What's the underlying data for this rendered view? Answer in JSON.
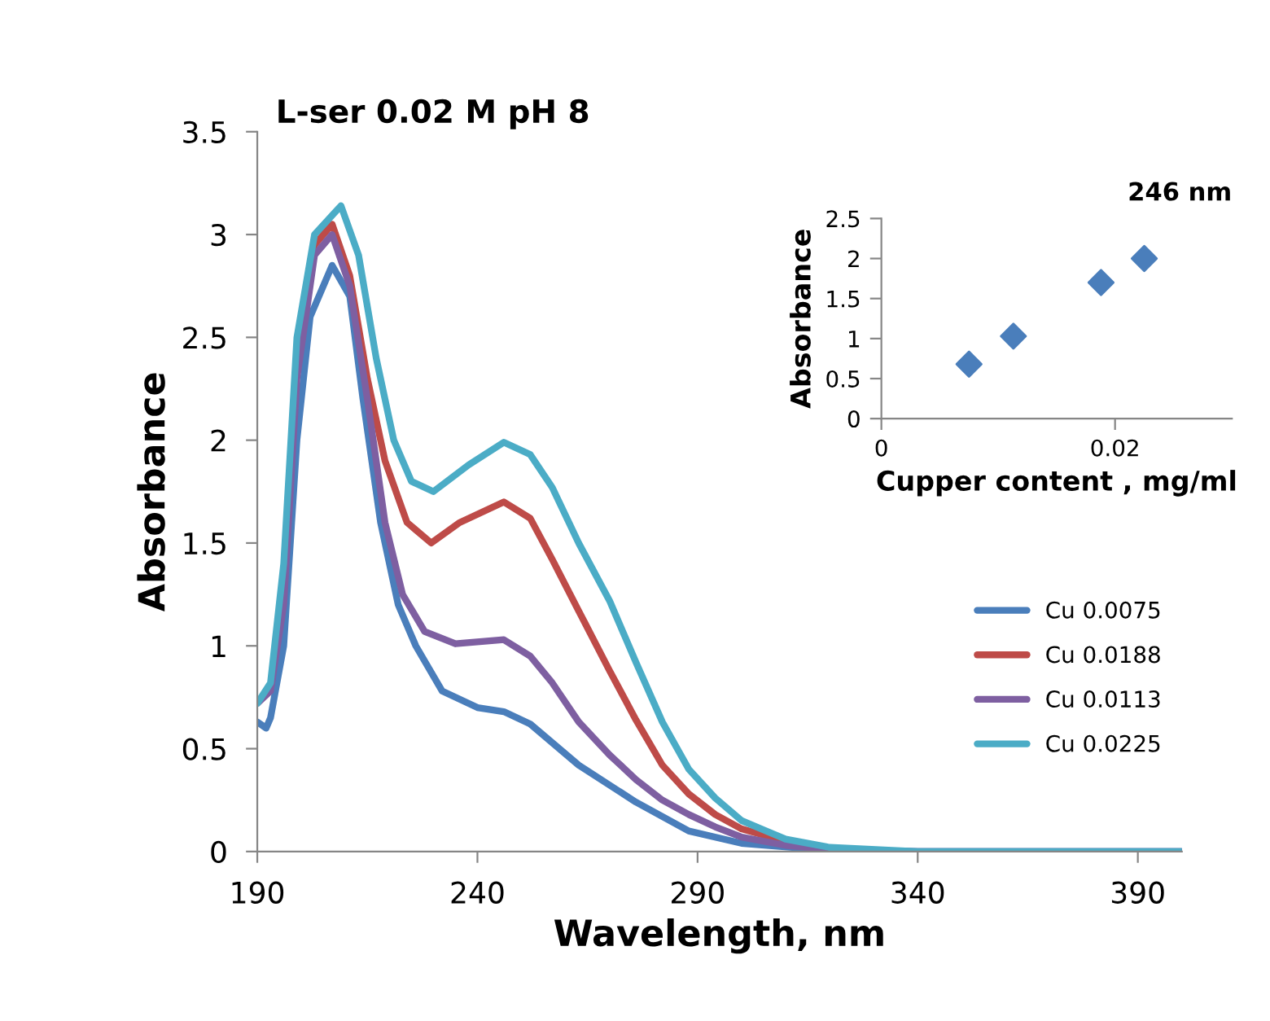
{
  "chart_data": [
    {
      "type": "line",
      "title": "L-ser 0.02 M pH 8",
      "xlabel": "Wavelength, nm",
      "ylabel": "Absorbance",
      "xlim": [
        190,
        400
      ],
      "ylim": [
        0,
        3.5
      ],
      "xticks": [
        190,
        240,
        290,
        340,
        390
      ],
      "yticks": [
        0,
        0.5,
        1,
        1.5,
        2,
        2.5,
        3,
        3.5
      ],
      "grid": false,
      "legend": "right",
      "marker": "none",
      "line_style": "solid",
      "series": [
        {
          "name": "Cu 0.0075",
          "color": "#4a7ebb",
          "x": [
            190,
            192,
            193,
            196,
            199,
            202,
            207,
            211,
            214,
            218,
            222,
            226,
            232,
            240,
            246,
            252,
            263,
            276,
            288,
            300,
            320,
            340,
            400
          ],
          "values": [
            0.63,
            0.6,
            0.65,
            1.0,
            2.0,
            2.6,
            2.85,
            2.7,
            2.2,
            1.6,
            1.2,
            1.0,
            0.78,
            0.7,
            0.68,
            0.62,
            0.42,
            0.24,
            0.1,
            0.04,
            0.005,
            0,
            0
          ]
        },
        {
          "name": "Cu 0.0188",
          "color": "#be4b48",
          "x": [
            199,
            203,
            207,
            211,
            215,
            219,
            224,
            229.5,
            236,
            246,
            252,
            257,
            263,
            270,
            276,
            282,
            288,
            294,
            300,
            310
          ],
          "values": [
            2.4,
            2.95,
            3.05,
            2.8,
            2.3,
            1.9,
            1.6,
            1.5,
            1.6,
            1.7,
            1.62,
            1.42,
            1.17,
            0.88,
            0.64,
            0.42,
            0.28,
            0.18,
            0.11,
            0.05
          ]
        },
        {
          "name": "Cu 0.0113",
          "color": "#7e5fa1",
          "x": [
            190,
            193,
            196,
            199,
            203,
            207,
            211,
            215,
            219,
            223,
            228,
            235,
            246,
            252,
            257,
            263,
            270,
            276,
            282,
            288,
            294,
            300,
            310,
            320,
            340,
            400
          ],
          "values": [
            0.72,
            0.78,
            1.2,
            2.3,
            2.9,
            3.0,
            2.75,
            2.2,
            1.6,
            1.25,
            1.07,
            1.01,
            1.03,
            0.95,
            0.82,
            0.63,
            0.47,
            0.35,
            0.25,
            0.18,
            0.12,
            0.07,
            0.03,
            0.01,
            0,
            0
          ]
        },
        {
          "name": "Cu 0.0225",
          "color": "#4bacc6",
          "x": [
            190,
            193,
            196,
            199,
            203,
            209,
            213,
            217,
            221,
            225,
            230,
            238,
            246,
            252,
            257,
            263,
            270,
            276,
            282,
            288,
            294,
            300,
            310,
            320,
            340,
            400
          ],
          "values": [
            0.72,
            0.82,
            1.4,
            2.5,
            3.0,
            3.14,
            2.9,
            2.4,
            2.0,
            1.8,
            1.75,
            1.88,
            1.99,
            1.93,
            1.77,
            1.5,
            1.22,
            0.92,
            0.63,
            0.4,
            0.26,
            0.15,
            0.06,
            0.02,
            0,
            0
          ]
        }
      ]
    },
    {
      "type": "scatter",
      "title": "246 nm",
      "xlabel": "Cupper content , mg/ml",
      "ylabel": "Absorbance",
      "xlim": [
        0,
        0.03
      ],
      "ylim": [
        0,
        2.5
      ],
      "xticks": [
        0,
        0.02
      ],
      "yticks": [
        0,
        0.5,
        1,
        1.5,
        2,
        2.5
      ],
      "grid": false,
      "legend": false,
      "marker": "diamond",
      "series": [
        {
          "color": "#4a7ebb",
          "x": [
            0.0075,
            0.0113,
            0.0188,
            0.0225
          ],
          "values": [
            0.68,
            1.03,
            1.7,
            2.0
          ]
        }
      ]
    }
  ]
}
